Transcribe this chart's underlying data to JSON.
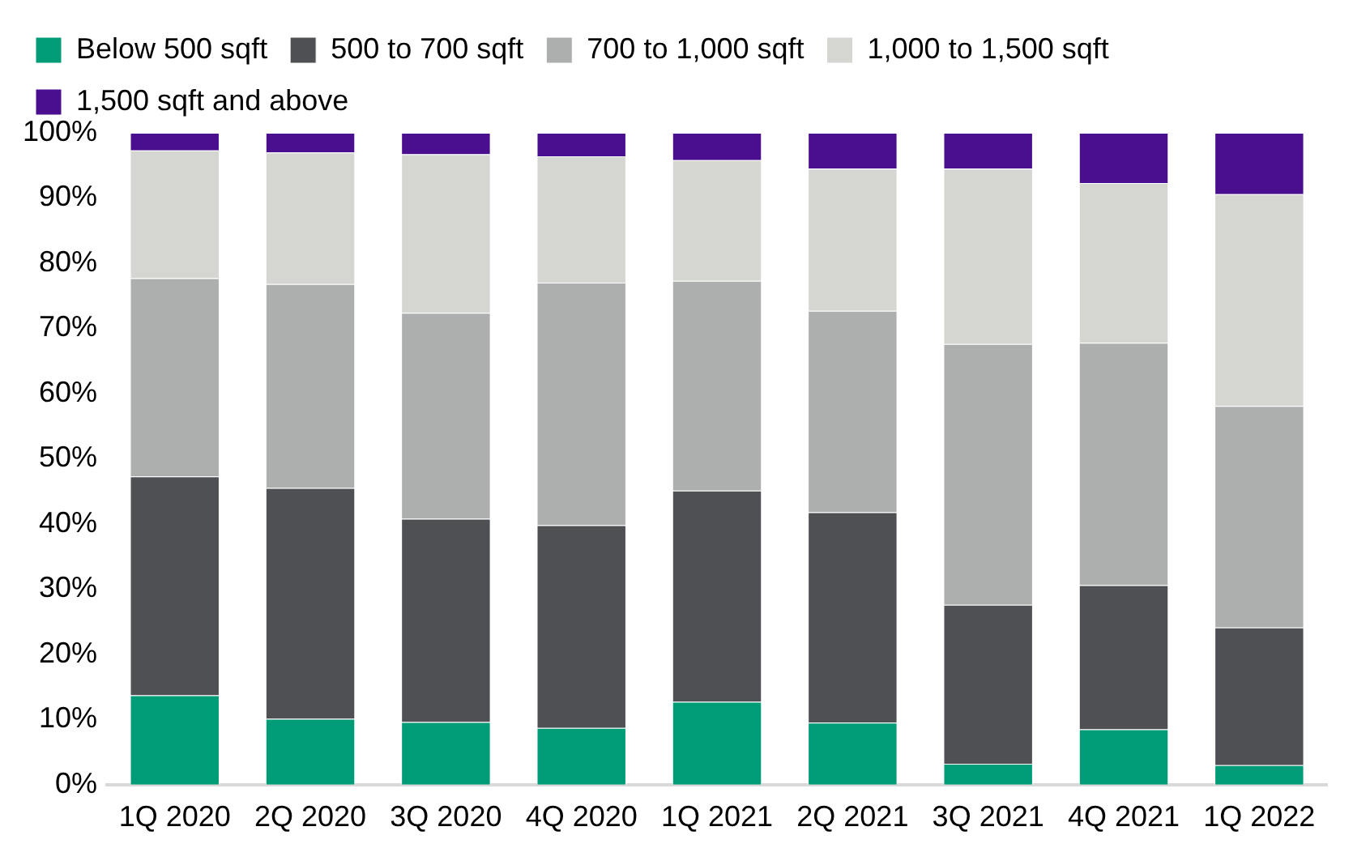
{
  "chart_data": {
    "type": "bar",
    "stacked": true,
    "legend": "top",
    "grid": false,
    "categories": [
      "1Q 2020",
      "2Q 2020",
      "3Q 2020",
      "4Q 2020",
      "1Q 2021",
      "2Q 2021",
      "3Q 2021",
      "4Q 2021",
      "1Q 2022"
    ],
    "series": [
      {
        "name": "Below 500 sqft",
        "color": "#009b77",
        "values": [
          13.7,
          10.1,
          9.6,
          8.7,
          12.7,
          9.5,
          3.2,
          8.5,
          3.0
        ]
      },
      {
        "name": "500 to 700 sqft",
        "color": "#4f5054",
        "values": [
          33.6,
          35.4,
          31.2,
          31.1,
          32.4,
          32.3,
          24.4,
          22.1,
          21.1
        ]
      },
      {
        "name": "700 to 1,000 sqft",
        "color": "#adafae",
        "values": [
          30.4,
          31.3,
          31.6,
          37.2,
          32.2,
          30.9,
          40.0,
          37.2,
          34.0
        ]
      },
      {
        "name": "1,000 to 1,500 sqft",
        "color": "#d5d6d2",
        "values": [
          19.6,
          20.2,
          24.3,
          19.4,
          18.5,
          21.8,
          26.9,
          24.5,
          32.5
        ]
      },
      {
        "name": "1,500 sqft and above",
        "color": "#4a0f8f",
        "values": [
          2.7,
          3.0,
          3.3,
          3.6,
          4.2,
          5.5,
          5.5,
          7.7,
          9.4
        ]
      }
    ],
    "ylim": [
      0,
      100
    ],
    "yticks": [
      {
        "value": 0,
        "label": "0%"
      },
      {
        "value": 10,
        "label": "10%"
      },
      {
        "value": 20,
        "label": "20%"
      },
      {
        "value": 30,
        "label": "30%"
      },
      {
        "value": 40,
        "label": "40%"
      },
      {
        "value": 50,
        "label": "50%"
      },
      {
        "value": 60,
        "label": "60%"
      },
      {
        "value": 70,
        "label": "70%"
      },
      {
        "value": 80,
        "label": "80%"
      },
      {
        "value": 90,
        "label": "90%"
      },
      {
        "value": 100,
        "label": "100%"
      }
    ]
  }
}
